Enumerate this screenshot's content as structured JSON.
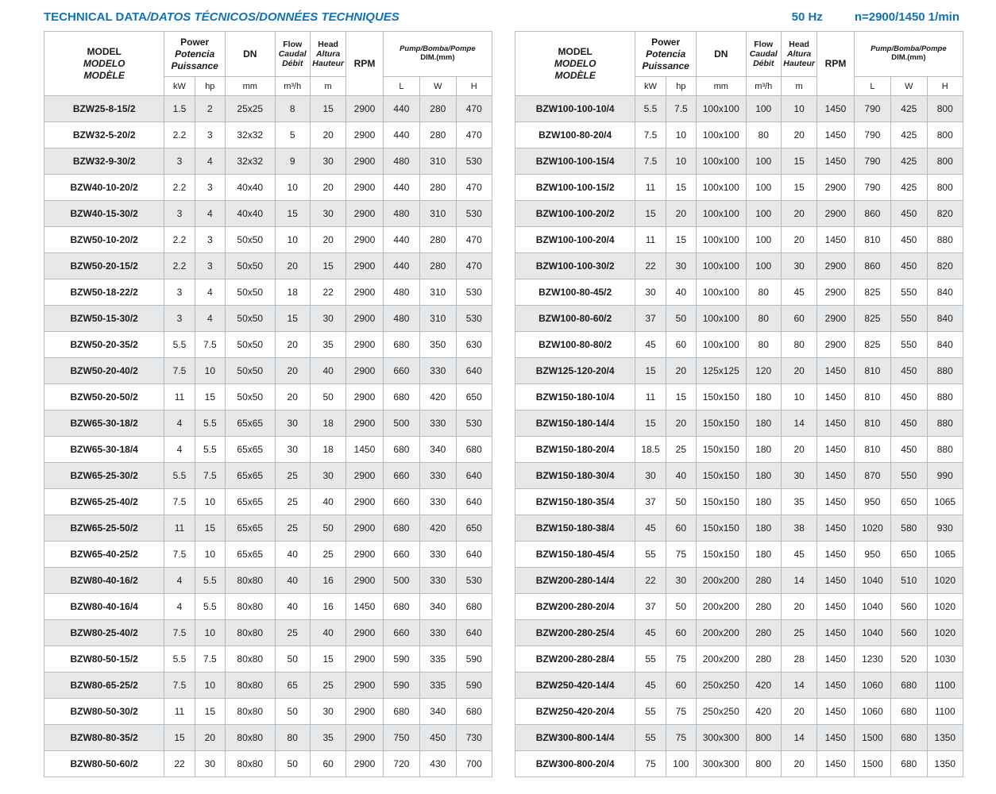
{
  "header": {
    "title_en": "TECHNICAL DATA",
    "title_rest": "/DATOS TÉCNICOS/DONNÉES TECHNIQUES",
    "frequency": "50 Hz",
    "speed": "n=2900/1450 1/min"
  },
  "columns": {
    "model": {
      "en": "MODEL",
      "es": "MODELO",
      "fr": "MODÈLE"
    },
    "power": {
      "en": "Power",
      "es": "Potencia",
      "fr": "Puissance",
      "unit_kw": "kW",
      "unit_hp": "hp"
    },
    "dn": {
      "label": "DN",
      "unit": "mm"
    },
    "flow": {
      "en": "Flow",
      "es": "Caudal",
      "fr": "Débit",
      "unit": "m³/h"
    },
    "head": {
      "en": "Head",
      "es": "Altura",
      "fr": "Hauteur",
      "unit": "m"
    },
    "rpm": {
      "label": "RPM"
    },
    "dim": {
      "line1": "Pump/Bomba/Pompe",
      "line2": "DIM.(mm)",
      "unit_l": "L",
      "unit_w": "W",
      "unit_h": "H"
    }
  },
  "tables": [
    {
      "rows": [
        [
          "BZW25-8-15/2",
          "1.5",
          "2",
          "25x25",
          "8",
          "15",
          "2900",
          "440",
          "280",
          "470"
        ],
        [
          "BZW32-5-20/2",
          "2.2",
          "3",
          "32x32",
          "5",
          "20",
          "2900",
          "440",
          "280",
          "470"
        ],
        [
          "BZW32-9-30/2",
          "3",
          "4",
          "32x32",
          "9",
          "30",
          "2900",
          "480",
          "310",
          "530"
        ],
        [
          "BZW40-10-20/2",
          "2.2",
          "3",
          "40x40",
          "10",
          "20",
          "2900",
          "440",
          "280",
          "470"
        ],
        [
          "BZW40-15-30/2",
          "3",
          "4",
          "40x40",
          "15",
          "30",
          "2900",
          "480",
          "310",
          "530"
        ],
        [
          "BZW50-10-20/2",
          "2.2",
          "3",
          "50x50",
          "10",
          "20",
          "2900",
          "440",
          "280",
          "470"
        ],
        [
          "BZW50-20-15/2",
          "2.2",
          "3",
          "50x50",
          "20",
          "15",
          "2900",
          "440",
          "280",
          "470"
        ],
        [
          "BZW50-18-22/2",
          "3",
          "4",
          "50x50",
          "18",
          "22",
          "2900",
          "480",
          "310",
          "530"
        ],
        [
          "BZW50-15-30/2",
          "3",
          "4",
          "50x50",
          "15",
          "30",
          "2900",
          "480",
          "310",
          "530"
        ],
        [
          "BZW50-20-35/2",
          "5.5",
          "7.5",
          "50x50",
          "20",
          "35",
          "2900",
          "680",
          "350",
          "630"
        ],
        [
          "BZW50-20-40/2",
          "7.5",
          "10",
          "50x50",
          "20",
          "40",
          "2900",
          "660",
          "330",
          "640"
        ],
        [
          "BZW50-20-50/2",
          "11",
          "15",
          "50x50",
          "20",
          "50",
          "2900",
          "680",
          "420",
          "650"
        ],
        [
          "BZW65-30-18/2",
          "4",
          "5.5",
          "65x65",
          "30",
          "18",
          "2900",
          "500",
          "330",
          "530"
        ],
        [
          "BZW65-30-18/4",
          "4",
          "5.5",
          "65x65",
          "30",
          "18",
          "1450",
          "680",
          "340",
          "680"
        ],
        [
          "BZW65-25-30/2",
          "5.5",
          "7.5",
          "65x65",
          "25",
          "30",
          "2900",
          "660",
          "330",
          "640"
        ],
        [
          "BZW65-25-40/2",
          "7.5",
          "10",
          "65x65",
          "25",
          "40",
          "2900",
          "660",
          "330",
          "640"
        ],
        [
          "BZW65-25-50/2",
          "11",
          "15",
          "65x65",
          "25",
          "50",
          "2900",
          "680",
          "420",
          "650"
        ],
        [
          "BZW65-40-25/2",
          "7.5",
          "10",
          "65x65",
          "40",
          "25",
          "2900",
          "660",
          "330",
          "640"
        ],
        [
          "BZW80-40-16/2",
          "4",
          "5.5",
          "80x80",
          "40",
          "16",
          "2900",
          "500",
          "330",
          "530"
        ],
        [
          "BZW80-40-16/4",
          "4",
          "5.5",
          "80x80",
          "40",
          "16",
          "1450",
          "680",
          "340",
          "680"
        ],
        [
          "BZW80-25-40/2",
          "7.5",
          "10",
          "80x80",
          "25",
          "40",
          "2900",
          "660",
          "330",
          "640"
        ],
        [
          "BZW80-50-15/2",
          "5.5",
          "7.5",
          "80x80",
          "50",
          "15",
          "2900",
          "590",
          "335",
          "590"
        ],
        [
          "BZW80-65-25/2",
          "7.5",
          "10",
          "80x80",
          "65",
          "25",
          "2900",
          "590",
          "335",
          "590"
        ],
        [
          "BZW80-50-30/2",
          "11",
          "15",
          "80x80",
          "50",
          "30",
          "2900",
          "680",
          "340",
          "680"
        ],
        [
          "BZW80-80-35/2",
          "15",
          "20",
          "80x80",
          "80",
          "35",
          "2900",
          "750",
          "450",
          "730"
        ],
        [
          "BZW80-50-60/2",
          "22",
          "30",
          "80x80",
          "50",
          "60",
          "2900",
          "720",
          "430",
          "700"
        ]
      ]
    },
    {
      "rows": [
        [
          "BZW100-100-10/4",
          "5.5",
          "7.5",
          "100x100",
          "100",
          "10",
          "1450",
          "790",
          "425",
          "800"
        ],
        [
          "BZW100-80-20/4",
          "7.5",
          "10",
          "100x100",
          "80",
          "20",
          "1450",
          "790",
          "425",
          "800"
        ],
        [
          "BZW100-100-15/4",
          "7.5",
          "10",
          "100x100",
          "100",
          "15",
          "1450",
          "790",
          "425",
          "800"
        ],
        [
          "BZW100-100-15/2",
          "11",
          "15",
          "100x100",
          "100",
          "15",
          "2900",
          "790",
          "425",
          "800"
        ],
        [
          "BZW100-100-20/2",
          "15",
          "20",
          "100x100",
          "100",
          "20",
          "2900",
          "860",
          "450",
          "820"
        ],
        [
          "BZW100-100-20/4",
          "11",
          "15",
          "100x100",
          "100",
          "20",
          "1450",
          "810",
          "450",
          "880"
        ],
        [
          "BZW100-100-30/2",
          "22",
          "30",
          "100x100",
          "100",
          "30",
          "2900",
          "860",
          "450",
          "820"
        ],
        [
          "BZW100-80-45/2",
          "30",
          "40",
          "100x100",
          "80",
          "45",
          "2900",
          "825",
          "550",
          "840"
        ],
        [
          "BZW100-80-60/2",
          "37",
          "50",
          "100x100",
          "80",
          "60",
          "2900",
          "825",
          "550",
          "840"
        ],
        [
          "BZW100-80-80/2",
          "45",
          "60",
          "100x100",
          "80",
          "80",
          "2900",
          "825",
          "550",
          "840"
        ],
        [
          "BZW125-120-20/4",
          "15",
          "20",
          "125x125",
          "120",
          "20",
          "1450",
          "810",
          "450",
          "880"
        ],
        [
          "BZW150-180-10/4",
          "11",
          "15",
          "150x150",
          "180",
          "10",
          "1450",
          "810",
          "450",
          "880"
        ],
        [
          "BZW150-180-14/4",
          "15",
          "20",
          "150x150",
          "180",
          "14",
          "1450",
          "810",
          "450",
          "880"
        ],
        [
          "BZW150-180-20/4",
          "18.5",
          "25",
          "150x150",
          "180",
          "20",
          "1450",
          "810",
          "450",
          "880"
        ],
        [
          "BZW150-180-30/4",
          "30",
          "40",
          "150x150",
          "180",
          "30",
          "1450",
          "870",
          "550",
          "990"
        ],
        [
          "BZW150-180-35/4",
          "37",
          "50",
          "150x150",
          "180",
          "35",
          "1450",
          "950",
          "650",
          "1065"
        ],
        [
          "BZW150-180-38/4",
          "45",
          "60",
          "150x150",
          "180",
          "38",
          "1450",
          "1020",
          "580",
          "930"
        ],
        [
          "BZW150-180-45/4",
          "55",
          "75",
          "150x150",
          "180",
          "45",
          "1450",
          "950",
          "650",
          "1065"
        ],
        [
          "BZW200-280-14/4",
          "22",
          "30",
          "200x200",
          "280",
          "14",
          "1450",
          "1040",
          "510",
          "1020"
        ],
        [
          "BZW200-280-20/4",
          "37",
          "50",
          "200x200",
          "280",
          "20",
          "1450",
          "1040",
          "560",
          "1020"
        ],
        [
          "BZW200-280-25/4",
          "45",
          "60",
          "200x200",
          "280",
          "25",
          "1450",
          "1040",
          "560",
          "1020"
        ],
        [
          "BZW200-280-28/4",
          "55",
          "75",
          "200x200",
          "280",
          "28",
          "1450",
          "1230",
          "520",
          "1030"
        ],
        [
          "BZW250-420-14/4",
          "45",
          "60",
          "250x250",
          "420",
          "14",
          "1450",
          "1060",
          "680",
          "1100"
        ],
        [
          "BZW250-420-20/4",
          "55",
          "75",
          "250x250",
          "420",
          "20",
          "1450",
          "1060",
          "680",
          "1100"
        ],
        [
          "BZW300-800-14/4",
          "55",
          "75",
          "300x300",
          "800",
          "14",
          "1450",
          "1500",
          "680",
          "1350"
        ],
        [
          "BZW300-800-20/4",
          "75",
          "100",
          "300x300",
          "800",
          "20",
          "1450",
          "1500",
          "680",
          "1350"
        ]
      ]
    }
  ]
}
